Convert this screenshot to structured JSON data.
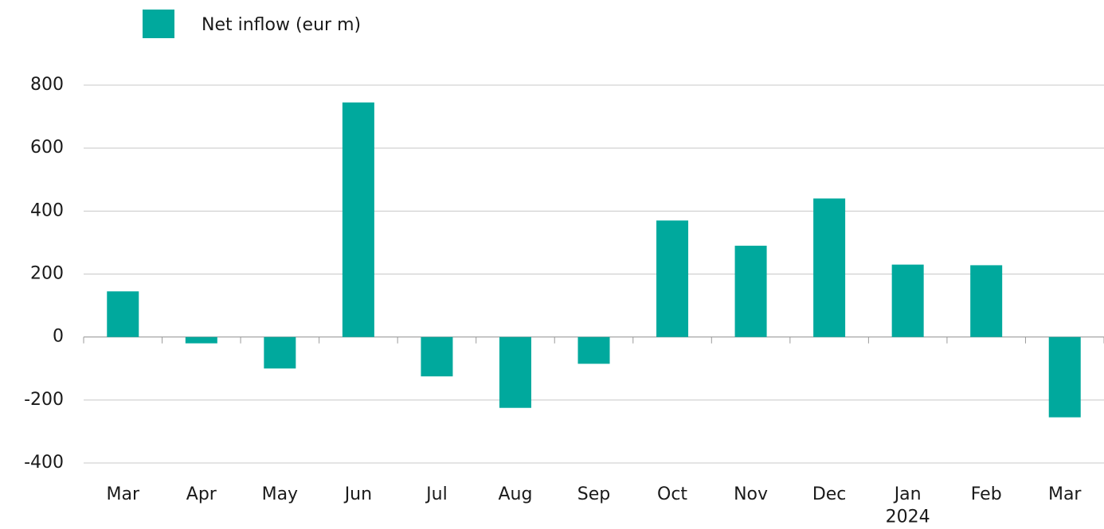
{
  "chart_data": {
    "type": "bar",
    "categories": [
      "Mar",
      "Apr",
      "May",
      "Jun",
      "Jul",
      "Aug",
      "Sep",
      "Oct",
      "Nov",
      "Dec",
      "Jan 2024",
      "Feb",
      "Mar"
    ],
    "series": [
      {
        "name": "Net inflow (eur m)",
        "color": "#00a99d",
        "values": [
          145,
          -20,
          -100,
          745,
          -125,
          -225,
          -85,
          370,
          290,
          440,
          230,
          228,
          -255
        ]
      }
    ],
    "ylim": [
      -400,
      800
    ],
    "yticks": [
      -400,
      -200,
      0,
      200,
      400,
      600,
      800
    ],
    "grid": true,
    "legend": "top-left"
  }
}
